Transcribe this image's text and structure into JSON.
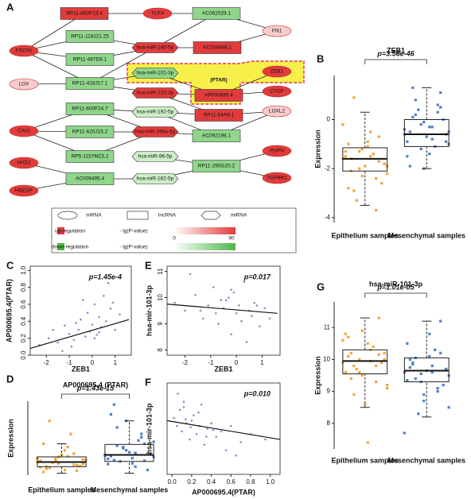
{
  "panels": [
    "A",
    "B",
    "C",
    "D",
    "E",
    "F",
    "G"
  ],
  "network": {
    "highlight": "(PTAR)",
    "nodes": [
      {
        "label": "RP11-863P13.4",
        "kind": "lncRNA",
        "color": "#e23b3b"
      },
      {
        "label": "TCF4",
        "kind": "mRNA",
        "color": "#e23b3b"
      },
      {
        "label": "AC062029.1",
        "kind": "lncRNA",
        "color": "#8fd68a"
      },
      {
        "label": "FN1",
        "kind": "mRNA",
        "color": "#f9cccc"
      },
      {
        "label": "RP11-118J21.25",
        "kind": "lncRNA",
        "color": "#8fd68a"
      },
      {
        "label": "FSCN1",
        "kind": "mRNA",
        "color": "#e23b3b"
      },
      {
        "label": "RP11-467D6.1",
        "kind": "lncRNA",
        "color": "#8fd68a"
      },
      {
        "label": "hsa-miR-145-5p",
        "kind": "miRNA",
        "color": "#e23b3b"
      },
      {
        "label": "AC004988.1",
        "kind": "lncRNA",
        "color": "#e23b3b"
      },
      {
        "label": "LOX",
        "kind": "mRNA",
        "color": "#f9cccc"
      },
      {
        "label": "RP11-418J17.1",
        "kind": "lncRNA",
        "color": "#8fd68a"
      },
      {
        "label": "hsa-miR-101-3p",
        "kind": "miRNA",
        "color": "#8fd68a"
      },
      {
        "label": "ZEB1",
        "kind": "mRNA",
        "color": "#e23b3b"
      },
      {
        "label": "hsa-miR-132-3p",
        "kind": "miRNA",
        "color": "#e23b3b"
      },
      {
        "label": "AP000695.4",
        "kind": "lncRNA",
        "color": "#e23b3b"
      },
      {
        "label": "CTGF",
        "kind": "mRNA",
        "color": "#e23b3b"
      },
      {
        "label": "RP11-600F24.7",
        "kind": "lncRNA",
        "color": "#8fd68a"
      },
      {
        "label": "hsa-miR-192-5p",
        "kind": "miRNA",
        "color": "#cdeec8"
      },
      {
        "label": "LOXL2",
        "kind": "mRNA",
        "color": "#f9cccc"
      },
      {
        "label": "RP11-54A9.1",
        "kind": "lncRNA",
        "color": "#e23b3b"
      },
      {
        "label": "CAV1",
        "kind": "mRNA",
        "color": "#e23b3b"
      },
      {
        "label": "RP11-620J15.2",
        "kind": "lncRNA",
        "color": "#8fd68a"
      },
      {
        "label": "hsa-miR-199a-5p",
        "kind": "miRNA",
        "color": "#e23b3b"
      },
      {
        "label": "AC092198.1",
        "kind": "lncRNA",
        "color": "#8fd68a"
      },
      {
        "label": "RP5-1157M23.2",
        "kind": "lncRNA",
        "color": "#8fd68a"
      },
      {
        "label": "hsa-miR-96-5p",
        "kind": "miRNA",
        "color": "#cdeec8"
      },
      {
        "label": "PDPN",
        "kind": "mRNA",
        "color": "#e23b3b"
      },
      {
        "label": "HAS2",
        "kind": "mRNA",
        "color": "#e23b3b"
      },
      {
        "label": "RP11-295G20.2",
        "kind": "lncRNA",
        "color": "#8fd68a"
      },
      {
        "label": "TGFBR1",
        "kind": "mRNA",
        "color": "#e23b3b"
      },
      {
        "label": "HBEGF",
        "kind": "mRNA",
        "color": "#e23b3b"
      },
      {
        "label": "AC009495.4",
        "kind": "lncRNA",
        "color": "#8fd68a"
      },
      {
        "label": "hsa-miR-182-5p",
        "kind": "miRNA",
        "color": "#cdeec8"
      }
    ]
  },
  "legend": {
    "shapes": [
      "mRNA",
      "lncRNA",
      "miRNA"
    ],
    "up": "up-regulation",
    "down": "down-regulation",
    "scale_label": "- lg(P-value)",
    "scale_min": "0",
    "scale_max": "90",
    "up_color": "#e23b3b",
    "down_color": "#4cb848"
  },
  "chart_data": [
    {
      "type": "box",
      "title": "ZEB1",
      "annotation": "p=3.56e-46",
      "ylabel": "Expression",
      "categories": [
        "Epithelium samples",
        "Mesenchymal samples"
      ],
      "ylim": [
        -4.2,
        1.8
      ],
      "yticks": [
        -4,
        -2,
        0
      ],
      "groups": [
        {
          "color": "#f2a43a",
          "whisker_low": -3.5,
          "q1": -2.1,
          "median": -1.6,
          "q3": -1.15,
          "whisker_high": 0.3,
          "points": [
            -1.6,
            -2.1,
            -1.3,
            -0.9,
            -2.4,
            -1.8,
            -1.5,
            -2.9,
            -1.2,
            -0.5,
            -1.7,
            -2.2,
            -1.0,
            -3.3,
            -1.9,
            -1.4,
            -2.6,
            -0.2,
            -1.6,
            -2.0,
            -1.1,
            -3.7,
            -1.8,
            -1.3,
            0.9,
            -2.3,
            -1.5,
            -0.7,
            -1.9,
            -2.8
          ]
        },
        {
          "color": "#4f7fc4",
          "whisker_low": -2.0,
          "q1": -1.1,
          "median": -0.6,
          "q3": 0.0,
          "whisker_high": 1.3,
          "points": [
            -0.6,
            0.1,
            -1.2,
            -0.3,
            0.6,
            -0.9,
            -1.5,
            0.2,
            -0.1,
            -0.8,
            1.1,
            -0.5,
            -1.9,
            0.4,
            -0.7,
            -1.1,
            0.0,
            -0.4,
            1.3,
            -0.2,
            -1.4,
            0.3,
            -0.6,
            -0.9,
            0.8,
            -2.0,
            -0.3,
            0.5,
            -1.0,
            -0.5
          ]
        }
      ]
    },
    {
      "type": "scatter",
      "annotation": "p=1.45e-4",
      "xlabel": "ZEB1",
      "ylabel": "AP000695.4(PTAR)",
      "color": "#8a8fc4",
      "xlim": [
        -2.7,
        1.7
      ],
      "xticks": [
        -2,
        -1,
        0,
        1
      ],
      "ylim": [
        0,
        1.05
      ],
      "yticks": [
        {
          "value": 0,
          "label": "0.0"
        },
        0.2,
        0.4,
        0.6,
        0.8,
        {
          "value": 1,
          "label": "1.0"
        }
      ],
      "x": [
        -2.3,
        -1.9,
        -1.5,
        -1.2,
        -1.0,
        -0.8,
        -0.6,
        -0.5,
        -0.3,
        -0.2,
        -0.1,
        0.0,
        0.1,
        0.2,
        0.3,
        0.4,
        0.5,
        0.6,
        0.8,
        1.0,
        1.2,
        -1.7,
        -0.9,
        -0.4,
        0.1,
        0.7,
        -1.3,
        -0.7,
        0.3,
        0.9
      ],
      "y": [
        0.12,
        0.2,
        0.15,
        0.35,
        0.25,
        0.18,
        0.3,
        0.42,
        0.22,
        0.5,
        0.28,
        0.36,
        0.6,
        0.24,
        0.45,
        0.33,
        0.7,
        0.4,
        0.55,
        0.3,
        0.48,
        0.3,
        0.1,
        0.65,
        0.2,
        0.85,
        0.05,
        0.38,
        0.27,
        0.62
      ],
      "trend_line": {
        "x": [
          -2.7,
          1.6
        ],
        "y": [
          0.08,
          0.42
        ]
      }
    },
    {
      "type": "scatter",
      "annotation": "p=0.017",
      "xlabel": "ZEB1",
      "ylabel": "hsa-mir-101-3p",
      "color": "#8a8fc4",
      "xlim": [
        -2.7,
        1.7
      ],
      "xticks": [
        -2,
        -1,
        0,
        1
      ],
      "ylim": [
        7.8,
        11.2
      ],
      "yticks": [
        8,
        9,
        10,
        11
      ],
      "x": [
        -2.4,
        -2.0,
        -1.6,
        -1.3,
        -1.1,
        -0.9,
        -0.7,
        -0.5,
        -0.4,
        -0.2,
        -0.1,
        0.0,
        0.1,
        0.2,
        0.3,
        0.5,
        0.6,
        0.7,
        0.9,
        1.1,
        1.3,
        -1.8,
        -0.8,
        -0.3,
        0.4,
        0.8,
        -1.4,
        -0.6,
        0.2,
        -0.2
      ],
      "y": [
        9.8,
        9.5,
        10.1,
        9.2,
        9.7,
        10.4,
        9.0,
        9.6,
        9.9,
        8.6,
        10.2,
        9.4,
        9.7,
        9.1,
        10.6,
        9.5,
        9.3,
        9.8,
        8.9,
        9.6,
        9.2,
        10.9,
        9.4,
        10.0,
        8.3,
        9.7,
        9.5,
        9.9,
        9.1,
        10.3
      ],
      "trend_line": {
        "x": [
          -2.7,
          1.6
        ],
        "y": [
          9.75,
          9.4
        ]
      }
    },
    {
      "type": "box",
      "title": "AP000695.4 (PTAR)",
      "annotation": "p=1.43e-15",
      "ylabel": "Expression",
      "categories": [
        "Epithelium samples",
        "Mesenchymal samples"
      ],
      "ylim": [
        -0.03,
        1.1
      ],
      "groups": [
        {
          "color": "#f2a43a",
          "whisker_low": 0.0,
          "q1": 0.1,
          "median": 0.17,
          "q3": 0.25,
          "whisker_high": 0.45,
          "points": [
            0.17,
            0.1,
            0.22,
            0.05,
            0.3,
            0.14,
            0.19,
            0.08,
            0.25,
            0.4,
            0.12,
            0.2,
            0.02,
            0.16,
            0.28,
            0.6,
            0.11,
            0.23,
            0.07,
            0.18,
            0.35,
            0.13,
            0.21,
            0.09,
            0.8,
            0.15,
            0.26,
            0.04,
            0.19,
            0.45
          ]
        },
        {
          "color": "#4f7fc4",
          "whisker_low": 0.0,
          "q1": 0.18,
          "median": 0.28,
          "q3": 0.44,
          "whisker_high": 0.8,
          "points": [
            0.28,
            0.2,
            0.4,
            0.15,
            0.55,
            0.3,
            0.22,
            0.7,
            0.35,
            0.1,
            0.45,
            0.25,
            0.9,
            0.18,
            0.32,
            0.5,
            0.05,
            0.27,
            1.05,
            0.38,
            0.23,
            0.6,
            0.29,
            0.14,
            0.42,
            0.8,
            0.31,
            0.19,
            0.48,
            0.26
          ]
        }
      ]
    },
    {
      "type": "scatter",
      "annotation": "p=0.010",
      "xlabel": "AP000695.4(PTAR)",
      "ylabel": "hsa-mir-101-3p",
      "color": "#8a8fc4",
      "xlim": [
        -0.05,
        1.1
      ],
      "xticks": [
        {
          "value": 0,
          "label": "0.0"
        },
        0.2,
        0.4,
        0.6,
        0.8,
        {
          "value": 1,
          "label": "1.0"
        }
      ],
      "ylim": [
        7.8,
        11.2
      ],
      "x": [
        0.02,
        0.05,
        0.08,
        0.1,
        0.12,
        0.15,
        0.18,
        0.2,
        0.22,
        0.25,
        0.28,
        0.3,
        0.33,
        0.36,
        0.4,
        0.45,
        0.5,
        0.55,
        0.6,
        0.7,
        0.8,
        0.95,
        0.06,
        0.14,
        0.19,
        0.27,
        0.35,
        0.42,
        0.65,
        0.12
      ],
      "y": [
        9.9,
        9.6,
        10.2,
        9.4,
        10.5,
        9.7,
        9.1,
        9.8,
        10.0,
        9.3,
        9.6,
        10.4,
        8.9,
        9.5,
        9.7,
        9.2,
        9.4,
        8.7,
        9.6,
        9.0,
        9.3,
        9.1,
        10.8,
        9.85,
        9.55,
        10.1,
        9.2,
        9.45,
        8.5,
        10.3
      ],
      "trend_line": {
        "x": [
          -0.05,
          1.1
        ],
        "y": [
          9.8,
          9.1
        ]
      }
    },
    {
      "type": "box",
      "title": "hsa-miR-101-3p",
      "annotation": "p=1.01e-05",
      "ylabel": "Expression",
      "categories": [
        "Epithelium samples",
        "Mesenchymal samples"
      ],
      "ylim": [
        7.2,
        11.8
      ],
      "yticks": [
        8,
        9,
        10,
        11
      ],
      "groups": [
        {
          "color": "#f2a43a",
          "whisker_low": 8.5,
          "q1": 9.55,
          "median": 9.95,
          "q3": 10.3,
          "whisker_high": 11.3,
          "points": [
            9.9,
            10.2,
            9.6,
            10.5,
            9.3,
            10.0,
            10.8,
            9.8,
            9.5,
            10.3,
            11.3,
            9.1,
            10.1,
            9.7,
            8.6,
            10.4,
            9.9,
            10.6,
            9.4,
            10.0,
            7.4,
            9.8,
            10.2,
            9.6,
            8.9,
            10.9,
            9.95,
            10.15,
            9.2,
            10.7
          ]
        },
        {
          "color": "#4f7fc4",
          "whisker_low": 8.2,
          "q1": 9.3,
          "median": 9.65,
          "q3": 10.05,
          "whisker_high": 11.2,
          "points": [
            9.6,
            9.9,
            9.3,
            10.1,
            9.0,
            9.7,
            10.5,
            9.4,
            8.7,
            9.8,
            11.2,
            9.5,
            10.0,
            8.3,
            9.65,
            10.3,
            9.2,
            7.7,
            9.85,
            9.55,
            10.8,
            9.1,
            9.7,
            9.35,
            10.05,
            8.9,
            9.6,
            10.2,
            8.5,
            9.75
          ]
        }
      ]
    }
  ]
}
